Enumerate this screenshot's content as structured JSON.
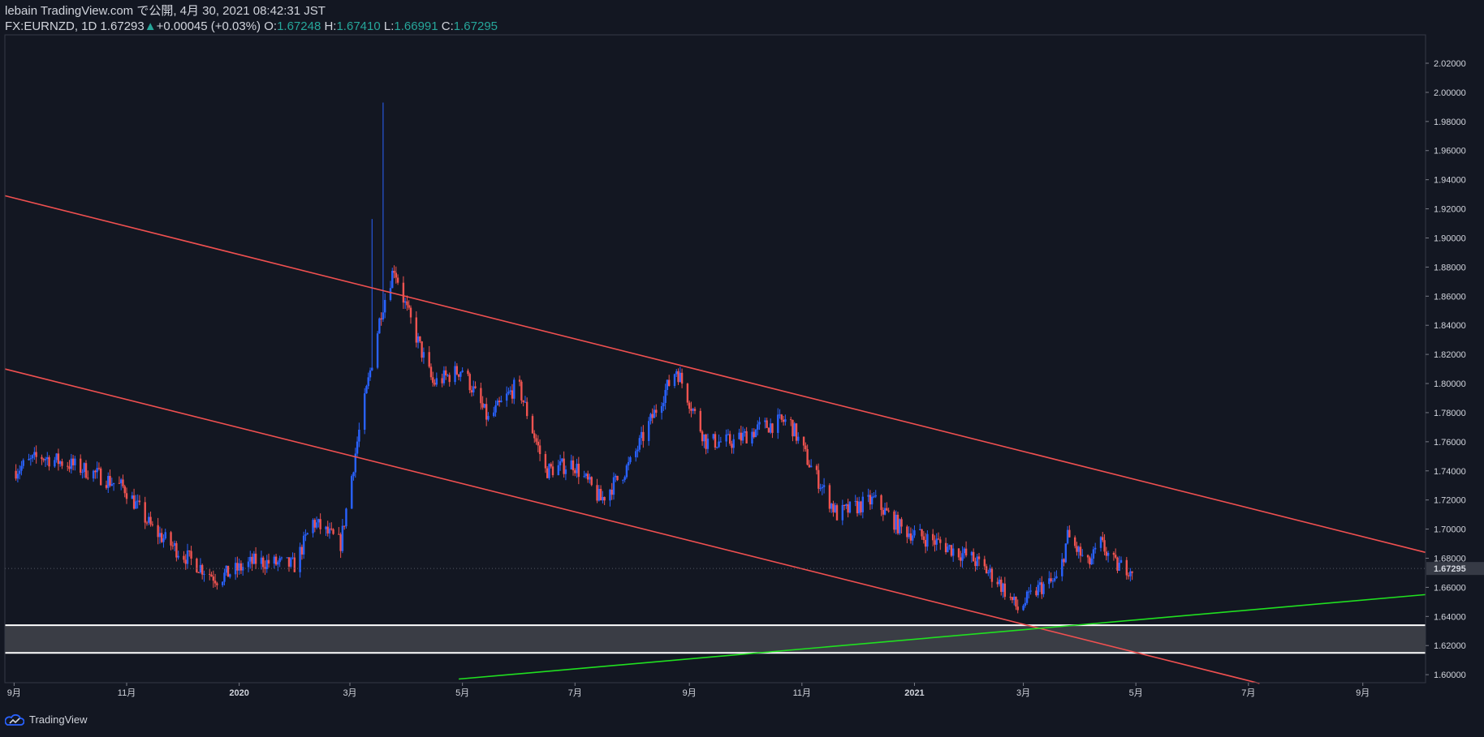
{
  "header": {
    "line1": "lebain TradingView.com で公開, 4月 30, 2021 08:42:31 JST",
    "symbol": "FX:EURNZD, 1D",
    "last": "1.67293",
    "arrow": "▲",
    "change": "+0.00045 (+0.03%)",
    "o_label": "O:",
    "o_value": "1.67248",
    "h_label": "H:",
    "h_value": "1.67410",
    "l_label": "L:",
    "l_value": "1.66991",
    "c_label": "C:",
    "c_value": "1.67295"
  },
  "branding": {
    "label": "TradingView"
  },
  "colors": {
    "background": "#131722",
    "up": "#2962ff",
    "down": "#ef5350",
    "channel": "#f05050",
    "support_line": "#20e020",
    "zone_fill": "#3a3d45",
    "zone_edge": "#ffffff"
  },
  "chart_data": {
    "type": "candlestick",
    "symbol": "FX:EURNZD",
    "timeframe": "1D",
    "last_price_label": "1.67295",
    "y_ticks": [
      "1.60000",
      "1.62000",
      "1.64000",
      "1.66000",
      "1.68000",
      "1.70000",
      "1.72000",
      "1.74000",
      "1.76000",
      "1.78000",
      "1.80000",
      "1.82000",
      "1.84000",
      "1.86000",
      "1.88000",
      "1.90000",
      "1.92000",
      "1.94000",
      "1.96000",
      "1.98000",
      "2.00000",
      "2.02000"
    ],
    "ylim": [
      1.5945,
      2.0395
    ],
    "x_ticks": [
      "9月",
      "11月",
      "2020",
      "3月",
      "5月",
      "7月",
      "9月",
      "11月",
      "2021",
      "3月",
      "5月",
      "7月",
      "9月"
    ],
    "xlim": [
      "2019-08-27",
      "2021-10-05"
    ],
    "closes": [
      [
        "2019-09-01",
        1.74
      ],
      [
        "2019-09-15",
        1.75
      ],
      [
        "2019-09-30",
        1.745
      ],
      [
        "2019-10-15",
        1.738
      ],
      [
        "2019-10-31",
        1.728
      ],
      [
        "2019-11-15",
        1.7
      ],
      [
        "2019-12-01",
        1.683
      ],
      [
        "2019-12-20",
        1.666
      ],
      [
        "2020-01-10",
        1.678
      ],
      [
        "2020-01-31",
        1.675
      ],
      [
        "2020-02-10",
        1.705
      ],
      [
        "2020-02-25",
        1.69
      ],
      [
        "2020-03-05",
        1.76
      ],
      [
        "2020-03-18",
        1.85
      ],
      [
        "2020-03-25",
        1.88
      ],
      [
        "2020-04-01",
        1.85
      ],
      [
        "2020-04-15",
        1.8
      ],
      [
        "2020-05-01",
        1.81
      ],
      [
        "2020-05-15",
        1.775
      ],
      [
        "2020-05-31",
        1.8
      ],
      [
        "2020-06-15",
        1.74
      ],
      [
        "2020-06-30",
        1.745
      ],
      [
        "2020-07-15",
        1.72
      ],
      [
        "2020-07-31",
        1.745
      ],
      [
        "2020-08-15",
        1.785
      ],
      [
        "2020-08-25",
        1.81
      ],
      [
        "2020-09-10",
        1.76
      ],
      [
        "2020-09-25",
        1.76
      ],
      [
        "2020-10-10",
        1.77
      ],
      [
        "2020-10-25",
        1.775
      ],
      [
        "2020-11-05",
        1.745
      ],
      [
        "2020-11-20",
        1.71
      ],
      [
        "2020-12-10",
        1.72
      ],
      [
        "2020-12-25",
        1.7
      ],
      [
        "2021-01-15",
        1.69
      ],
      [
        "2021-02-01",
        1.68
      ],
      [
        "2021-02-15",
        1.665
      ],
      [
        "2021-02-26",
        1.645
      ],
      [
        "2021-03-10",
        1.66
      ],
      [
        "2021-03-20",
        1.665
      ],
      [
        "2021-03-25",
        1.695
      ],
      [
        "2021-04-05",
        1.675
      ],
      [
        "2021-04-12",
        1.69
      ],
      [
        "2021-04-20",
        1.675
      ],
      [
        "2021-04-30",
        1.67295
      ]
    ],
    "overlays": [
      {
        "type": "line",
        "color": "red",
        "from": [
          "2019-08-27",
          1.929
        ],
        "to": [
          "2021-10-05",
          1.684
        ]
      },
      {
        "type": "line",
        "color": "red",
        "from": [
          "2019-08-27",
          1.81
        ],
        "to": [
          "2021-07-07",
          1.594
        ]
      },
      {
        "type": "line",
        "color": "green",
        "from": [
          "2020-04-29",
          1.597
        ],
        "to": [
          "2021-10-05",
          1.655
        ]
      },
      {
        "type": "zone",
        "top": 1.634,
        "bottom": 1.615
      }
    ]
  }
}
